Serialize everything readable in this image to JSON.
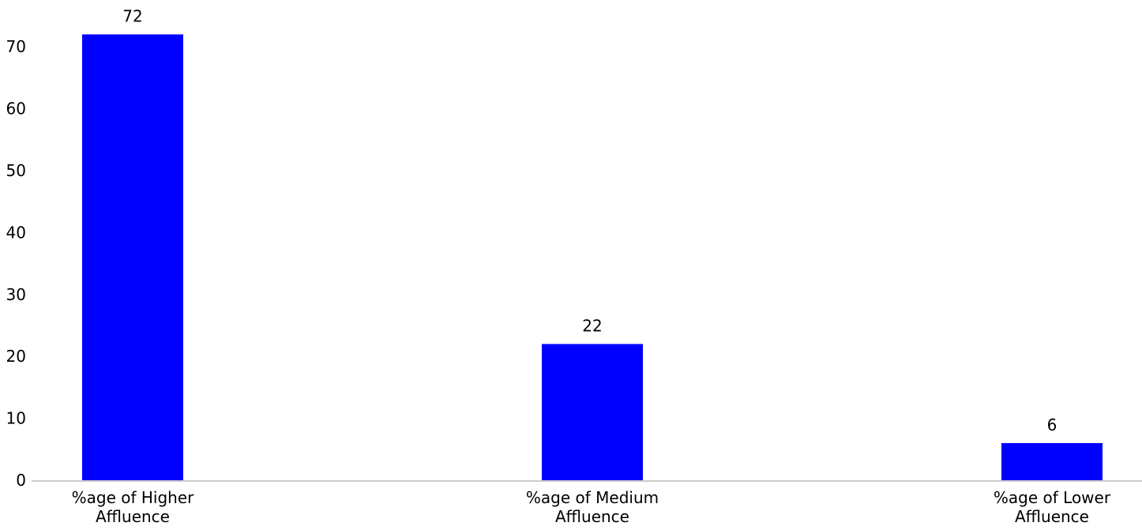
{
  "chart_data": {
    "type": "bar",
    "categories": [
      [
        "%age of Higher",
        "Affluence"
      ],
      [
        "%age of Medium",
        "Affluence"
      ],
      [
        "%age of Lower",
        "Affluence"
      ]
    ],
    "values": [
      72,
      22,
      6
    ],
    "data_labels": [
      "72",
      "22",
      "6"
    ],
    "yticks": [
      0,
      10,
      20,
      30,
      40,
      50,
      60,
      70
    ],
    "ylim": [
      0,
      72
    ],
    "grid": false,
    "bar_color": "#0000ff",
    "axis_color": "#cccccc",
    "title": "",
    "xlabel": "",
    "ylabel": ""
  }
}
